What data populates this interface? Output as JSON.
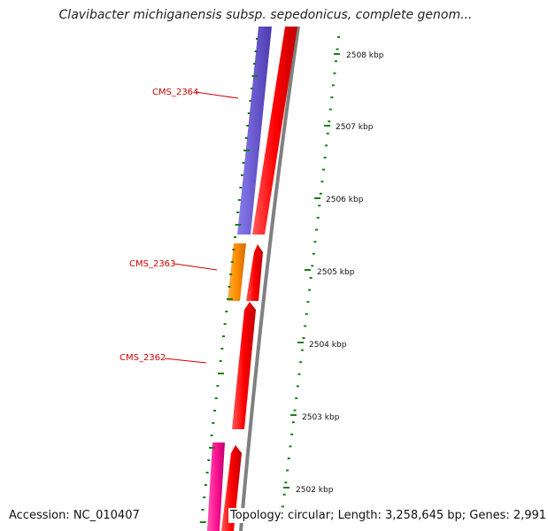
{
  "title": "Clavibacter michiganensis subsp. sepedonicus, complete genom...",
  "accession": "Accession: NC_010407",
  "topology": "Topology: circular; Length: 3,258,645 bp; Genes: 2,991",
  "colors": {
    "cds_strand": "#ff0000",
    "gene_a": "#6a5acd",
    "gene_b": "#ff8c00",
    "gene_c": "#ff1493",
    "backbone": "#808080",
    "gc_ticks": "#1a7f1a",
    "label_red": "#cc0000"
  },
  "scale_labels": [
    "2508 kbp",
    "2507 kbp",
    "2506 kbp",
    "2505 kbp",
    "2504 kbp",
    "2503 kbp",
    "2502 kbp"
  ],
  "gene_labels": [
    "CMS_2364",
    "CMS_2363",
    "CMS_2362"
  ]
}
